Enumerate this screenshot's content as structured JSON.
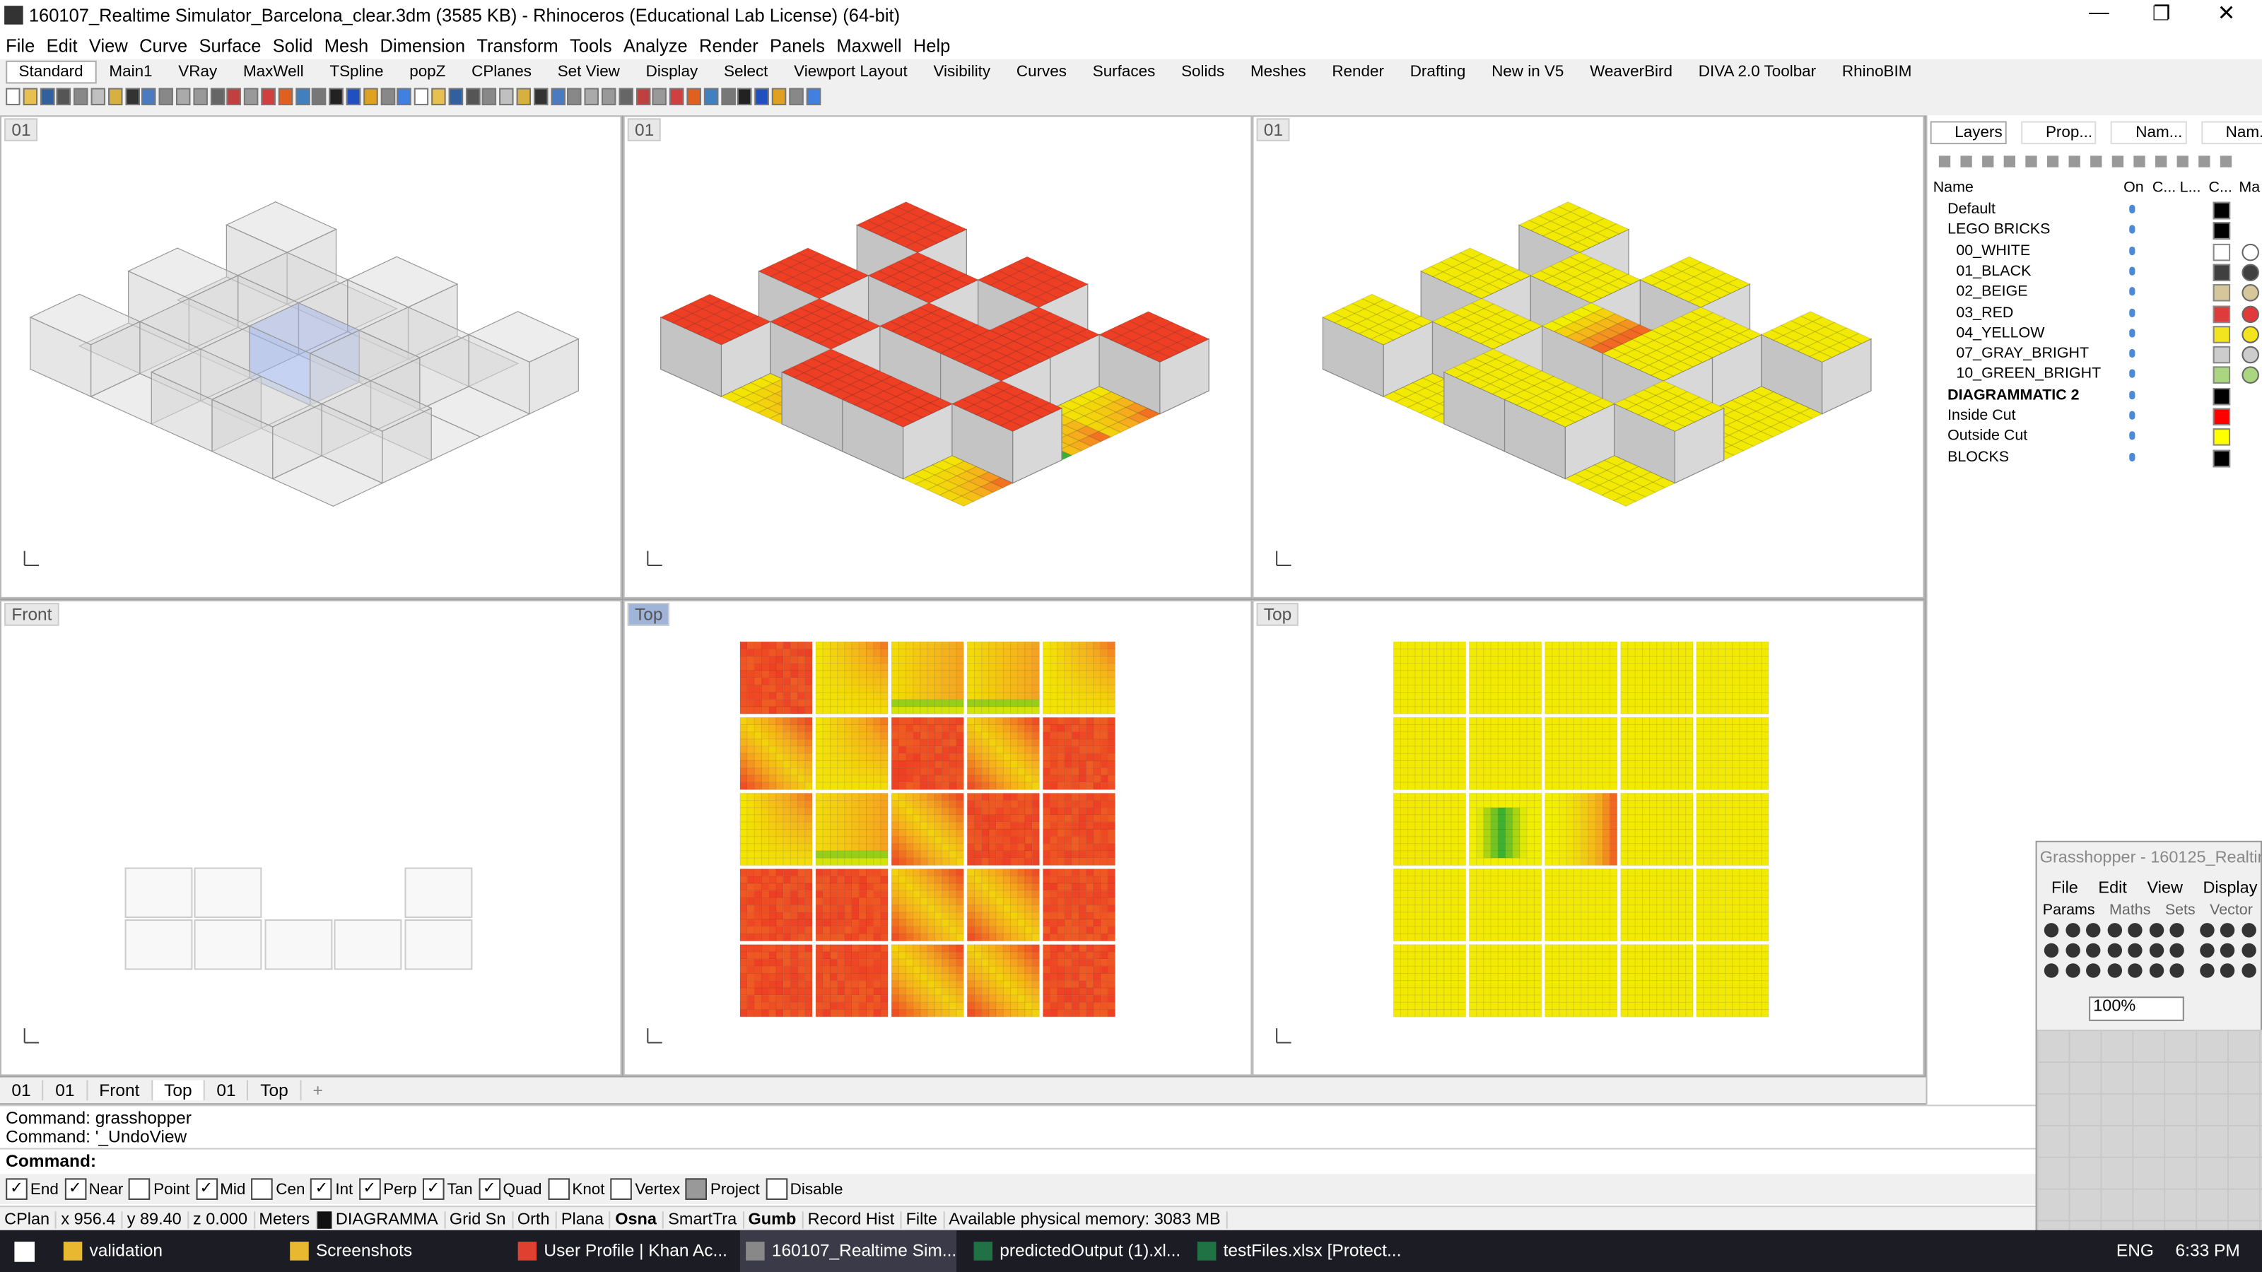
{
  "title_bar": {
    "title": "160107_Realtime Simulator_Barcelona_clear.3dm (3585 KB) - Rhinoceros (Educational Lab License) (64-bit)"
  },
  "menu": [
    "File",
    "Edit",
    "View",
    "Curve",
    "Surface",
    "Solid",
    "Mesh",
    "Dimension",
    "Transform",
    "Tools",
    "Analyze",
    "Render",
    "Panels",
    "Maxwell",
    "Help"
  ],
  "toolbar_tabs": [
    "Standard",
    "Main1",
    "VRay",
    "MaxWell",
    "TSpline",
    "popZ",
    "CPlanes",
    "Set View",
    "Display",
    "Select",
    "Viewport Layout",
    "Visibility",
    "Curves",
    "Surfaces",
    "Solids",
    "Meshes",
    "Render",
    "Drafting",
    "New in V5",
    "WeaverBird",
    "DIVA 2.0 Toolbar",
    "RhinoBIM"
  ],
  "viewports": [
    {
      "label": "01"
    },
    {
      "label": "01"
    },
    {
      "label": "01"
    },
    {
      "label": "Front"
    },
    {
      "label": "Top"
    },
    {
      "label": "Top"
    }
  ],
  "viewport_tabs": [
    "01",
    "01",
    "Front",
    "Top",
    "01",
    "Top"
  ],
  "layers_panel": {
    "tabs": [
      "Layers",
      "Prop...",
      "Nam...",
      "Nam..."
    ],
    "columns": [
      "Name",
      "On",
      "C...",
      "L...",
      "C...",
      "Ma"
    ],
    "layers": [
      {
        "name": "Default",
        "color": "#000000"
      },
      {
        "name": "LEGO BRICKS",
        "color": "#000000"
      },
      {
        "name": "00_WHITE",
        "color": "#ffffff"
      },
      {
        "name": "01_BLACK",
        "color": "#404040"
      },
      {
        "name": "02_BEIGE",
        "color": "#d6c79a"
      },
      {
        "name": "03_RED",
        "color": "#e03a3a"
      },
      {
        "name": "04_YELLOW",
        "color": "#f2e51e"
      },
      {
        "name": "07_GRAY_BRIGHT",
        "color": "#cccccc"
      },
      {
        "name": "10_GREEN_BRIGHT",
        "color": "#a9d67e"
      },
      {
        "name": "DIAGRAMMATIC 2",
        "color": "#000000"
      },
      {
        "name": "Inside Cut",
        "color": "#ff0000"
      },
      {
        "name": "Outside Cut",
        "color": "#ffff00"
      },
      {
        "name": "BLOCKS",
        "color": "#000000"
      }
    ]
  },
  "command": {
    "history": [
      "Command: grasshopper",
      "Command: '_UndoView"
    ],
    "prompt": "Command:"
  },
  "osnap": [
    {
      "label": "End",
      "checked": true
    },
    {
      "label": "Near",
      "checked": true
    },
    {
      "label": "Point",
      "checked": false
    },
    {
      "label": "Mid",
      "checked": true
    },
    {
      "label": "Cen",
      "checked": false
    },
    {
      "label": "Int",
      "checked": true
    },
    {
      "label": "Perp",
      "checked": true
    },
    {
      "label": "Tan",
      "checked": true
    },
    {
      "label": "Quad",
      "checked": true
    },
    {
      "label": "Knot",
      "checked": false
    },
    {
      "label": "Vertex",
      "checked": false
    },
    {
      "label": "Project",
      "checked": false
    },
    {
      "label": "Disable",
      "checked": false
    }
  ],
  "status_bar": [
    "CPlan",
    "x 956.4",
    "y 89.40",
    "z 0.000",
    "Meters",
    "DIAGRAMMA",
    "Grid Sn",
    "Orth",
    "Plana",
    "Osna",
    "SmartTra",
    "Gumb",
    "Record Hist",
    "Filte",
    "Available physical memory: 3083 MB"
  ],
  "grasshopper": {
    "title": "Grasshopper - 160125_Realtin",
    "menu": [
      "File",
      "Edit",
      "View",
      "Display"
    ],
    "tabs": [
      "Params",
      "Maths",
      "Sets",
      "Vector"
    ],
    "zoom": "100%"
  },
  "taskbar": {
    "items": [
      "validation",
      "Screenshots",
      "User Profile | Khan Ac...",
      "160107_Realtime Sim...",
      "predictedOutput (1).xl...",
      "testFiles.xlsx  [Protect..."
    ],
    "language": "ENG",
    "time": "6:33 PM"
  }
}
